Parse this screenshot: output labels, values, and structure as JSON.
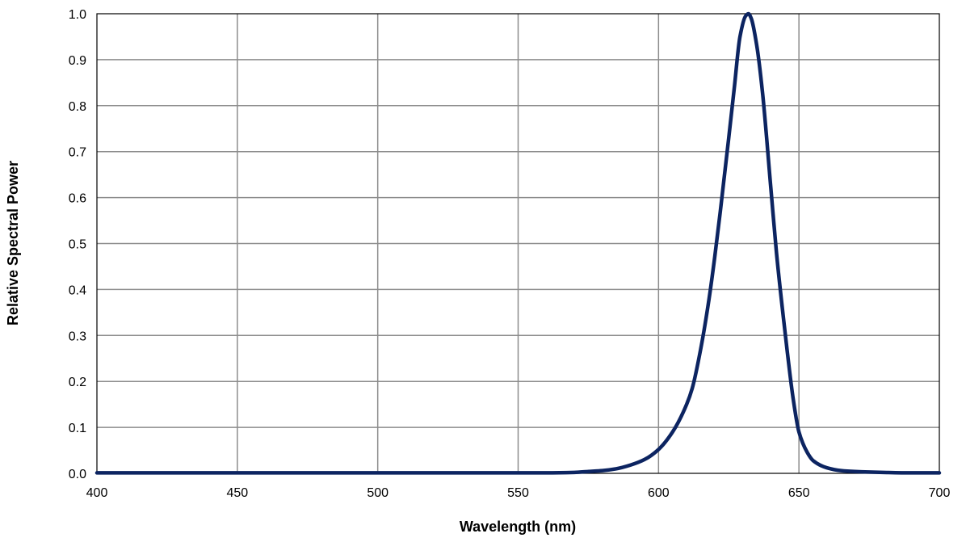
{
  "chart_data": {
    "type": "line",
    "title": "",
    "xlabel": "Wavelength (nm)",
    "ylabel": "Relative Spectral Power",
    "xlim": [
      400,
      700
    ],
    "ylim": [
      0.0,
      1.0
    ],
    "x_ticks": [
      "400",
      "450",
      "500",
      "550",
      "600",
      "650",
      "700"
    ],
    "y_ticks": [
      "0.0",
      "0.1",
      "0.2",
      "0.3",
      "0.4",
      "0.5",
      "0.6",
      "0.7",
      "0.8",
      "0.9",
      "1.0"
    ],
    "grid": true,
    "legend": "none",
    "line_color": "#0c2461",
    "series": [
      {
        "x": [
          400,
          450,
          500,
          550,
          560,
          570,
          575,
          580,
          585,
          590,
          595,
          600,
          605,
          610,
          612,
          615,
          618,
          620,
          622,
          625,
          627,
          629,
          631,
          632,
          633,
          635,
          637,
          640,
          642,
          645,
          648,
          650,
          653,
          655,
          660,
          665,
          670,
          680,
          690,
          700
        ],
        "values": [
          0.001,
          0.001,
          0.001,
          0.001,
          0.001,
          0.002,
          0.004,
          0.006,
          0.01,
          0.018,
          0.03,
          0.052,
          0.09,
          0.15,
          0.185,
          0.27,
          0.38,
          0.47,
          0.57,
          0.73,
          0.84,
          0.95,
          0.995,
          1.0,
          0.99,
          0.93,
          0.83,
          0.62,
          0.48,
          0.31,
          0.16,
          0.09,
          0.045,
          0.028,
          0.012,
          0.006,
          0.004,
          0.002,
          0.001,
          0.001
        ]
      }
    ]
  }
}
